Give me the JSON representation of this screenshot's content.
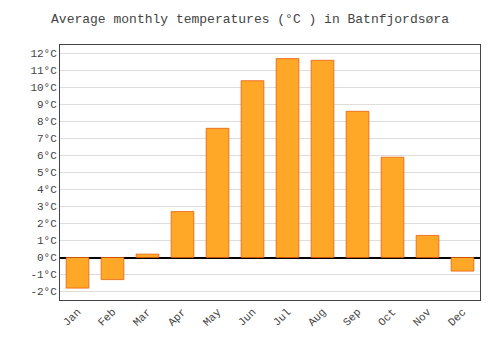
{
  "chart_data": {
    "type": "bar",
    "title": "Average monthly temperatures (°C ) in Batnfjordsøra",
    "categories": [
      "Jan",
      "Feb",
      "Mar",
      "Apr",
      "May",
      "Jun",
      "Jul",
      "Aug",
      "Sep",
      "Oct",
      "Nov",
      "Dec"
    ],
    "values": [
      -1.8,
      -1.3,
      0.2,
      2.7,
      7.6,
      10.4,
      11.7,
      11.6,
      8.6,
      5.9,
      1.3,
      -0.8
    ],
    "color": "#FFA726",
    "ylim": [
      -2.5,
      12.5
    ],
    "yticks": [
      {
        "value": -2,
        "label": "-2°C"
      },
      {
        "value": -1,
        "label": "-1°C"
      },
      {
        "value": 0,
        "label": "0°C"
      },
      {
        "value": 1,
        "label": "1°C"
      },
      {
        "value": 2,
        "label": "2°C"
      },
      {
        "value": 3,
        "label": "3°C"
      },
      {
        "value": 4,
        "label": "4°C"
      },
      {
        "value": 5,
        "label": "5°C"
      },
      {
        "value": 6,
        "label": "6°C"
      },
      {
        "value": 7,
        "label": "7°C"
      },
      {
        "value": 8,
        "label": "8°C"
      },
      {
        "value": 9,
        "label": "9°C"
      },
      {
        "value": 10,
        "label": "10°C"
      },
      {
        "value": 11,
        "label": "11°C"
      },
      {
        "value": 12,
        "label": "12°C"
      }
    ],
    "grid": true
  }
}
